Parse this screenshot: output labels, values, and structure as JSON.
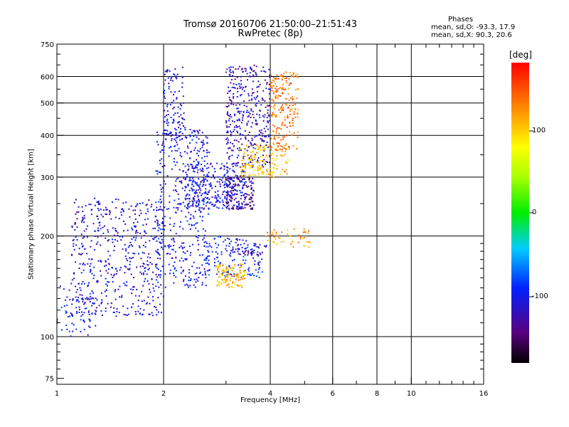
{
  "header": {
    "title_line1": "Tromsø 20160706 21:50:00–21:51:43",
    "title_line2": "RwPretec (8p)"
  },
  "stats": {
    "heading": "Phases",
    "line_o": "mean, sd,O:  -93.3, 17.9",
    "line_x": "mean, sd,X:  90.3, 20.6"
  },
  "colorbar": {
    "label": "[deg]",
    "ticks": [
      "100",
      "0",
      "-100"
    ],
    "range": [
      -180,
      180
    ]
  },
  "chart_data": {
    "type": "scatter",
    "xlabel": "Frequency [MHz]",
    "ylabel": "Stationary phase Virtual Height [km]",
    "xscale": "log",
    "yscale": "log",
    "xlim": [
      1,
      16
    ],
    "ylim": [
      72,
      750
    ],
    "x_ticks": [
      "1",
      "2",
      "4",
      "6",
      "8",
      "10",
      "16"
    ],
    "x_tick_values": [
      1,
      2,
      4,
      6,
      8,
      10,
      16
    ],
    "y_ticks": [
      "75",
      "100",
      "200",
      "300",
      "400",
      "500",
      "600",
      "750"
    ],
    "y_tick_values": [
      75,
      100,
      200,
      300,
      400,
      500,
      600,
      750
    ],
    "grid_x": [
      2,
      4,
      6,
      8,
      10
    ],
    "grid_y": [
      100,
      200,
      300,
      400,
      500,
      600
    ],
    "color_variable": "phase [deg]",
    "clusters": [
      {
        "x_range": [
          1.0,
          1.3
        ],
        "y_range": [
          100,
          145
        ],
        "phase": -100,
        "n": 70
      },
      {
        "x_range": [
          1.1,
          2.0
        ],
        "y_range": [
          115,
          260
        ],
        "phase": -110,
        "n": 520
      },
      {
        "x_range": [
          1.9,
          2.7
        ],
        "y_range": [
          140,
          420
        ],
        "phase": -105,
        "n": 420
      },
      {
        "x_range": [
          2.0,
          2.3
        ],
        "y_range": [
          380,
          640
        ],
        "phase": -110,
        "n": 110
      },
      {
        "x_range": [
          2.3,
          3.4
        ],
        "y_range": [
          240,
          330
        ],
        "phase": -105,
        "n": 320
      },
      {
        "x_range": [
          2.6,
          3.8
        ],
        "y_range": [
          150,
          200
        ],
        "phase": -95,
        "n": 140
      },
      {
        "x_range": [
          3.0,
          4.0
        ],
        "y_range": [
          320,
          650
        ],
        "phase": -120,
        "n": 360
      },
      {
        "x_range": [
          3.0,
          3.6
        ],
        "y_range": [
          240,
          300
        ],
        "phase": -135,
        "n": 120
      },
      {
        "x_range": [
          2.8,
          3.4
        ],
        "y_range": [
          140,
          165
        ],
        "phase": 110,
        "n": 110
      },
      {
        "x_range": [
          3.3,
          4.5
        ],
        "y_range": [
          300,
          380
        ],
        "phase": 105,
        "n": 160
      },
      {
        "x_range": [
          4.0,
          4.8
        ],
        "y_range": [
          360,
          620
        ],
        "phase": 135,
        "n": 200
      },
      {
        "x_range": [
          3.8,
          5.2
        ],
        "y_range": [
          185,
          210
        ],
        "phase": 120,
        "n": 45
      },
      {
        "x_range": [
          3.1,
          3.9
        ],
        "y_range": [
          175,
          190
        ],
        "phase": -120,
        "n": 40
      }
    ]
  }
}
